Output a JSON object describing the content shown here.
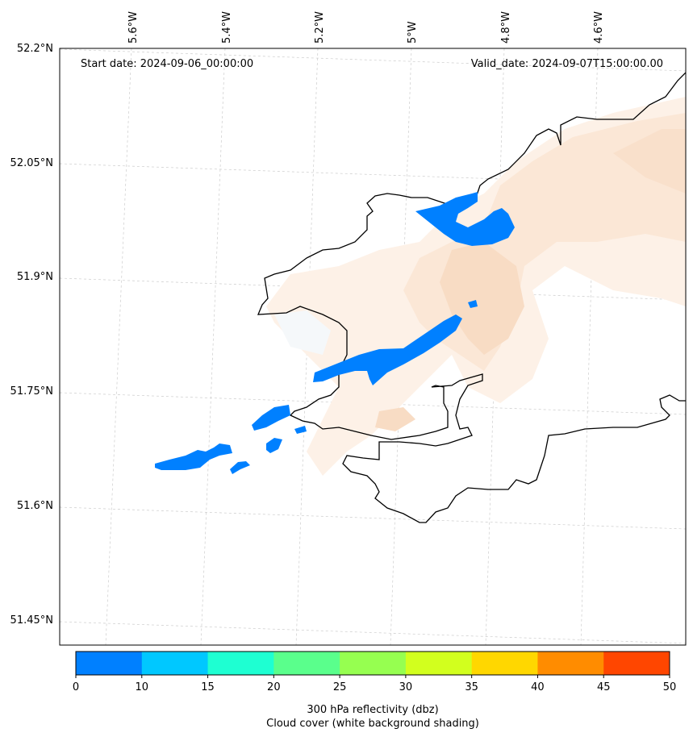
{
  "header": {
    "start_date": "Start date: 2024-09-06_00:00:00",
    "valid_date": "Valid_date: 2024-09-07T15:00:00.00"
  },
  "axes": {
    "lon_labels": [
      "5.6°W",
      "5.4°W",
      "5.2°W",
      "5°W",
      "4.8°W",
      "4.6°W"
    ],
    "lat_labels": [
      "52.2°N",
      "52.05°N",
      "51.9°N",
      "51.75°N",
      "51.6°N",
      "51.45°N"
    ]
  },
  "colorbar": {
    "ticks": [
      "0",
      "10",
      "15",
      "20",
      "25",
      "30",
      "35",
      "40",
      "45",
      "50"
    ],
    "colors": [
      "#0080ff",
      "#00c8ff",
      "#1effd2",
      "#5aff8c",
      "#96ff50",
      "#d2ff1e",
      "#ffd700",
      "#ff8c00",
      "#ff4600"
    ],
    "label_line1": "300 hPa reflectivity (dbz)",
    "label_line2": "Cloud cover (white background shading)"
  },
  "colors": {
    "reflectivity_low": "#0080ff",
    "cloud_shade": "#fbe6d5",
    "coastline": "#000000",
    "grid": "#cccccc"
  }
}
